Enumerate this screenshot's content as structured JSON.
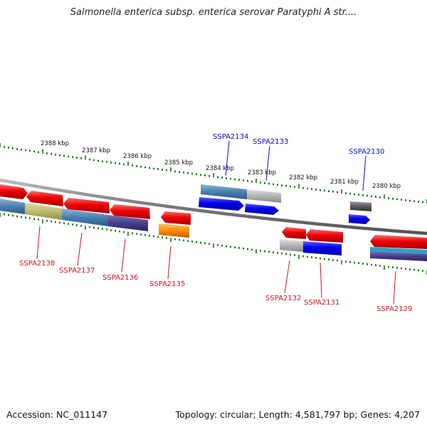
{
  "title": "Salmonella enterica subsp. enterica serovar Paratyphi A str....",
  "footer": {
    "accession": "Accession: NC_011147",
    "topology": "Topology: circular; Length: 4,581,797 bp; Genes: 4,207"
  },
  "scale_labels": [
    "2388 kbp",
    "2387 kbp",
    "2386 kbp",
    "2385 kbp",
    "2384 kbp",
    "2383 kbp",
    "2382 kbp",
    "2381 kbp",
    "2380 kbp"
  ],
  "gene_labels": {
    "forward": [
      "SSPA2134",
      "SSPA2133",
      "SSPA2130"
    ],
    "reverse": [
      "SSPA2138",
      "SSPA2137",
      "SSPA2136",
      "SSPA2135",
      "SSPA2132",
      "SSPA2131",
      "SSPA2129"
    ]
  },
  "colors": {
    "forward_label": "#0a0ad2",
    "reverse_label": "#d2141e",
    "tick": "#0a7a0a",
    "backbone": "#888888"
  }
}
